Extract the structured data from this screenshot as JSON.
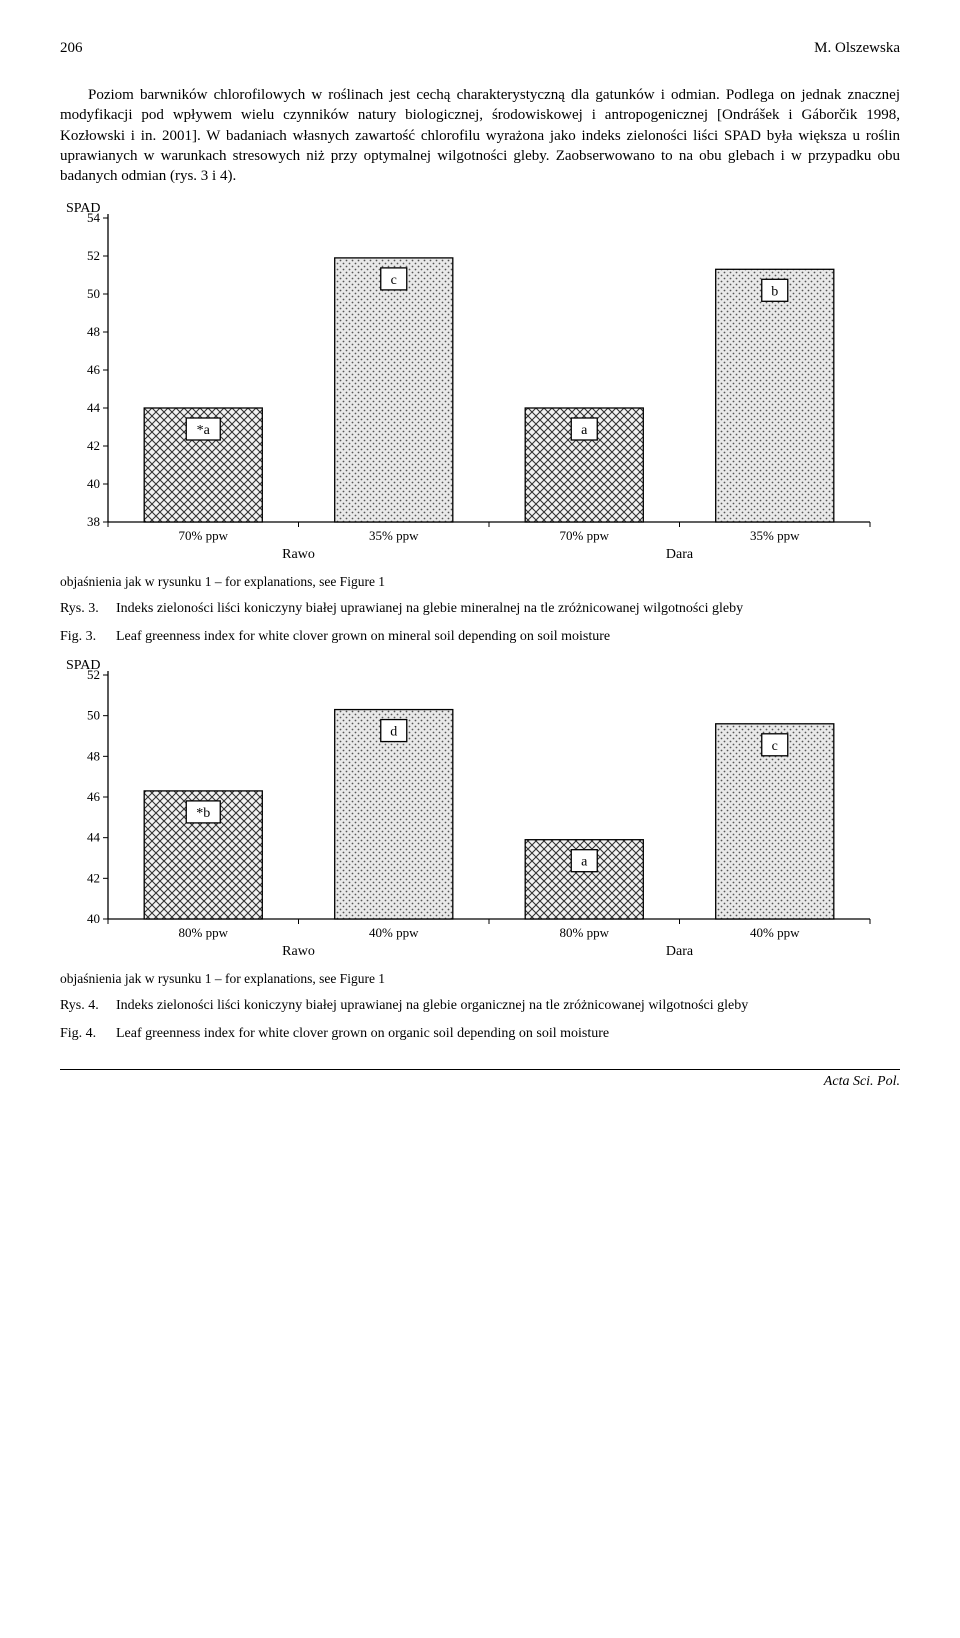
{
  "header": {
    "page_num": "206",
    "author": "M. Olszewska"
  },
  "paragraph": "Poziom barwników chlorofilowych w roślinach jest cechą charakterystyczną dla gatunków i odmian. Podlega on jednak znacznej modyfikacji pod wpływem wielu czynników natury biologicznej, środowiskowej i antropogenicznej [Ondrášek i Gáborčik 1998, Kozłowski i in. 2001]. W badaniach własnych zawartość chlorofilu wyrażona jako indeks zieloności liści SPAD była większa u roślin uprawianych w warunkach stresowych niż przy optymalnej wilgotności gleby. Zaobserwowano to na obu glebach i w przypadku obu badanych odmian (rys. 3 i 4).",
  "chart3": {
    "type": "bar",
    "ylabel": "SPAD",
    "ylim": [
      38,
      54
    ],
    "ytick_step": 2,
    "categories": [
      "70% ppw",
      "35% ppw",
      "70% ppw",
      "35% ppw"
    ],
    "groups": [
      "Rawo",
      "Dara"
    ],
    "values": [
      44.0,
      51.9,
      44.0,
      51.3
    ],
    "bar_labels": [
      "*a",
      "c",
      "a",
      "b"
    ],
    "bar_patterns": [
      "crosshatch",
      "dots",
      "crosshatch",
      "dots"
    ],
    "bar_width": 0.62,
    "background_color": "#ffffff",
    "axis_color": "#000000",
    "bar_border_color": "#000000",
    "label_fontsize": 14,
    "tick_fontsize": 13
  },
  "caption_expl": "objaśnienia jak w rysunku 1 – for explanations, see Figure 1",
  "fig3": {
    "rys_lbl": "Rys. 3.",
    "rys_txt": "Indeks zieloności liści koniczyny białej uprawianej na glebie mineralnej na tle zróżnicowanej wilgotności gleby",
    "fig_lbl": "Fig. 3.",
    "fig_txt": "Leaf greenness index for white clover grown on mineral soil depending on soil moisture"
  },
  "chart4": {
    "type": "bar",
    "ylabel": "SPAD",
    "ylim": [
      40,
      52
    ],
    "ytick_step": 2,
    "categories": [
      "80% ppw",
      "40% ppw",
      "80% ppw",
      "40% ppw"
    ],
    "groups": [
      "Rawo",
      "Dara"
    ],
    "values": [
      46.3,
      50.3,
      43.9,
      49.6
    ],
    "bar_labels": [
      "*b",
      "d",
      "a",
      "c"
    ],
    "bar_patterns": [
      "crosshatch",
      "dots",
      "crosshatch",
      "dots"
    ],
    "bar_width": 0.62,
    "background_color": "#ffffff",
    "axis_color": "#000000",
    "bar_border_color": "#000000",
    "label_fontsize": 14,
    "tick_fontsize": 13
  },
  "fig4": {
    "rys_lbl": "Rys. 4.",
    "rys_txt": "Indeks zieloności liści koniczyny białej uprawianej na glebie organicznej na tle zróżnicowanej wilgotności gleby",
    "fig_lbl": "Fig. 4.",
    "fig_txt": "Leaf greenness index for white clover grown on organic soil depending on soil moisture"
  },
  "footer": "Acta Sci. Pol."
}
